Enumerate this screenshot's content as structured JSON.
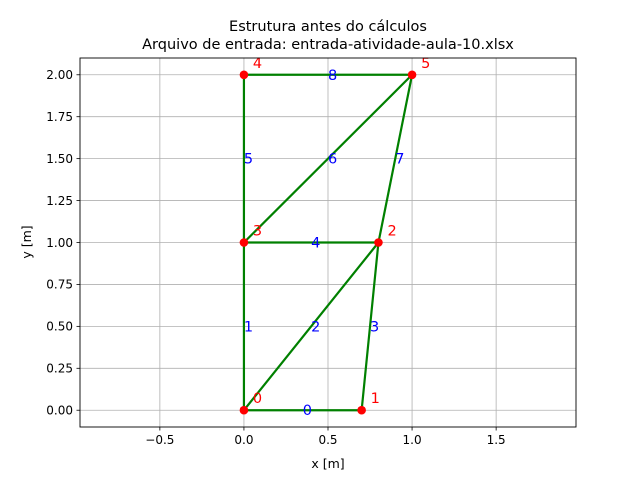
{
  "chart_data": {
    "type": "scatter",
    "title_line1": "Estrutura antes do cálculos",
    "title_line2": "Arquivo de entrada: entrada-atividade-aula-10.xlsx",
    "xlabel": "x [m]",
    "ylabel": "y [m]",
    "xlim": [
      -0.975,
      1.975
    ],
    "ylim": [
      -0.1,
      2.1
    ],
    "xticks": [
      -0.5,
      0.0,
      0.5,
      1.0,
      1.5
    ],
    "xtick_labels": [
      "−0.5",
      "0.0",
      "0.5",
      "1.0",
      "1.5"
    ],
    "yticks": [
      0.0,
      0.25,
      0.5,
      0.75,
      1.0,
      1.25,
      1.5,
      1.75,
      2.0
    ],
    "ytick_labels": [
      "0.00",
      "0.25",
      "0.50",
      "0.75",
      "1.00",
      "1.25",
      "1.50",
      "1.75",
      "2.00"
    ],
    "grid": true,
    "nodes": [
      {
        "id": "0",
        "x": 0.0,
        "y": 0.0
      },
      {
        "id": "1",
        "x": 0.7,
        "y": 0.0
      },
      {
        "id": "2",
        "x": 0.8,
        "y": 1.0
      },
      {
        "id": "3",
        "x": 0.0,
        "y": 1.0
      },
      {
        "id": "4",
        "x": 0.0,
        "y": 2.0
      },
      {
        "id": "5",
        "x": 1.0,
        "y": 2.0
      }
    ],
    "elements": [
      {
        "id": "0",
        "from": 0,
        "to": 1
      },
      {
        "id": "1",
        "from": 0,
        "to": 3
      },
      {
        "id": "2",
        "from": 0,
        "to": 2
      },
      {
        "id": "3",
        "from": 1,
        "to": 2
      },
      {
        "id": "4",
        "from": 3,
        "to": 2
      },
      {
        "id": "5",
        "from": 3,
        "to": 4
      },
      {
        "id": "6",
        "from": 3,
        "to": 5
      },
      {
        "id": "7",
        "from": 2,
        "to": 5
      },
      {
        "id": "8",
        "from": 4,
        "to": 5
      }
    ],
    "colors": {
      "element_line": "#008000",
      "node_marker": "#ff0000",
      "node_label": "#ff0000",
      "element_label": "#0000ff",
      "grid": "#b0b0b0"
    }
  }
}
